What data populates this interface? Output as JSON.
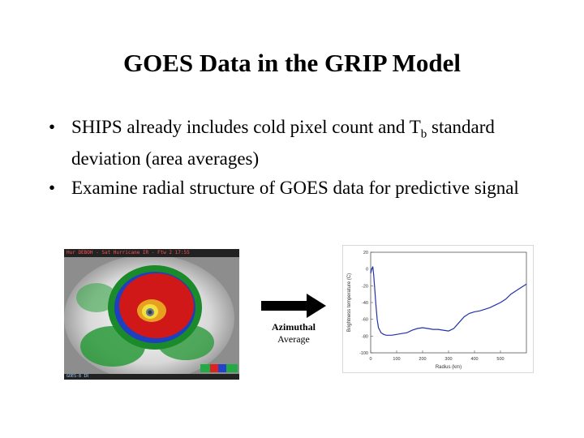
{
  "slide": {
    "title": "GOES Data in the GRIP Model",
    "bullets": [
      {
        "text": "SHIPS already includes cold pixel count and T",
        "sub": "b",
        "text_after": " standard deviation (area averages)"
      },
      {
        "text": "Examine radial structure of GOES data for predictive signal",
        "sub": "",
        "text_after": ""
      }
    ],
    "bullet_char": "•"
  },
  "satellite_image": {
    "header_text": "Hur DEBOH - Sat Hurricane  IR   -   Ftw 2 17:55",
    "footer_text": "GOES-8 IR"
  },
  "arrow": {
    "label_line1": "Azimuthal",
    "label_line2": "Average",
    "color": "#000000"
  },
  "chart_data": {
    "type": "line",
    "title": "",
    "xlabel": "Radius (km)",
    "ylabel": "Brightness temperature (C)",
    "xlim": [
      0,
      600
    ],
    "ylim": [
      -100,
      20
    ],
    "xticks": [
      0,
      100,
      200,
      300,
      400,
      500
    ],
    "yticks": [
      20,
      0,
      -20,
      -40,
      -60,
      -80,
      -100
    ],
    "grid": false,
    "series": [
      {
        "color": "#2233aa",
        "x": [
          0,
          4,
          8,
          12,
          16,
          20,
          25,
          30,
          40,
          50,
          60,
          80,
          100,
          120,
          140,
          160,
          180,
          200,
          220,
          240,
          260,
          280,
          300,
          320,
          340,
          360,
          380,
          400,
          420,
          440,
          460,
          480,
          500,
          520,
          540,
          560,
          580,
          600
        ],
        "y": [
          -5,
          0,
          3,
          -8,
          -25,
          -42,
          -60,
          -70,
          -76,
          -78,
          -79,
          -79,
          -78,
          -77,
          -76,
          -73,
          -71,
          -70,
          -71,
          -72,
          -72,
          -73,
          -74,
          -71,
          -64,
          -57,
          -53,
          -51,
          -50,
          -48,
          -46,
          -43,
          -40,
          -36,
          -30,
          -26,
          -22,
          -18
        ]
      }
    ]
  }
}
